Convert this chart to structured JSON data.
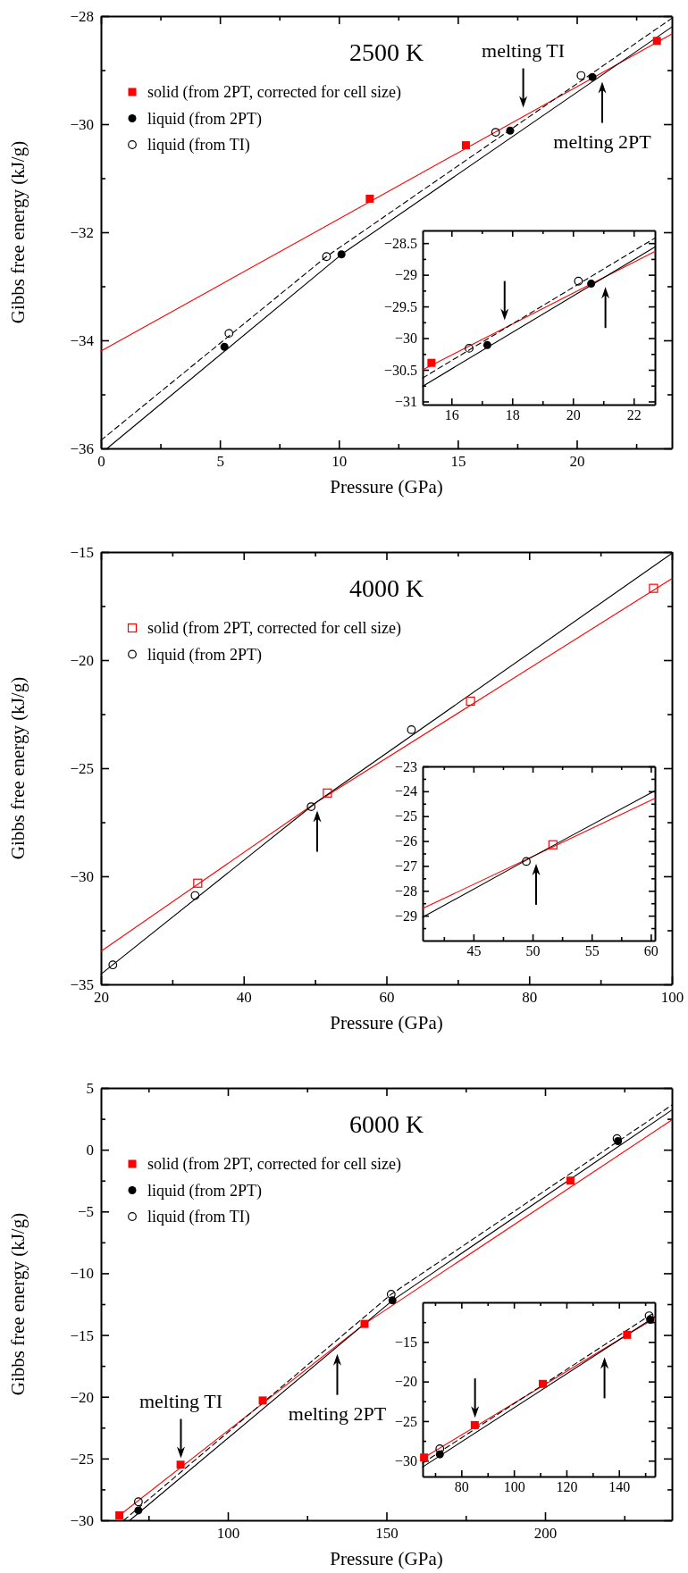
{
  "chart_data": [
    {
      "type": "scatter",
      "title": "2500 K",
      "xlabel": "Pressure (GPa)",
      "ylabel": "Gibbs free energy (kJ/g)",
      "xlim": [
        0,
        24
      ],
      "ylim": [
        -36,
        -28
      ],
      "xticks": [
        0,
        {
          "value": 2.5,
          "label": null
        },
        5,
        {
          "value": 7.5,
          "label": null
        },
        10,
        {
          "value": 12.5,
          "label": null
        },
        15,
        {
          "value": 17.5,
          "label": null
        },
        20,
        {
          "value": 22.5,
          "label": null
        }
      ],
      "yticks": [
        -36,
        {
          "value": -35,
          "label": null
        },
        -34,
        {
          "value": -33,
          "label": null
        },
        -32,
        {
          "value": -31,
          "label": null
        },
        -30,
        {
          "value": -29,
          "label": null
        },
        -28
      ],
      "legend": "top left",
      "annotations": [
        {
          "text": "melting TI",
          "x": 17.75,
          "y": -29.86
        },
        {
          "text": "melting 2PT",
          "x": 21.07,
          "y": -29.05
        }
      ],
      "series": [
        {
          "type": "line",
          "color": "#ff0000",
          "x": [
            0,
            24
          ],
          "values": [
            -34.2,
            -28.33
          ]
        },
        {
          "type": "line",
          "color": "#000000",
          "x": [
            0.26,
            10.11,
            24
          ],
          "values": [
            -36,
            -32.41,
            -28.2
          ]
        },
        {
          "type": "line",
          "color": "#000000",
          "line_style": "dashed",
          "x": [
            0,
            9.48,
            24
          ],
          "values": [
            -35.85,
            -32.45,
            -28.04
          ]
        },
        {
          "name": "solid (from 2PT, corrected for cell size)",
          "marker": "square",
          "color": "#ff0000",
          "x": [
            11.3,
            15.34,
            23.37
          ],
          "values": [
            -31.38,
            -30.39,
            -28.46
          ]
        },
        {
          "name": "liquid (from 2PT)",
          "marker": "circle",
          "color": "#000000",
          "x": [
            5.19,
            10.11,
            17.2,
            20.66
          ],
          "values": [
            -34.12,
            -32.41,
            -30.12,
            -29.13
          ]
        },
        {
          "name": "liquid (from TI)",
          "marker": "circle-open",
          "color": "#000000",
          "x": [
            5.38,
            9.48,
            16.59,
            20.18
          ],
          "values": [
            -33.87,
            -32.45,
            -30.15,
            -29.1
          ]
        }
      ]
    },
    {
      "type": "scatter",
      "xlim": [
        15.05,
        22.7
      ],
      "ylim": [
        -31.05,
        -28.3
      ],
      "xticks": [
        16,
        {
          "value": 17,
          "label": null
        },
        18,
        {
          "value": 19,
          "label": null
        },
        20,
        {
          "value": 21,
          "label": null
        },
        22
      ],
      "yticks": [
        -31,
        {
          "value": -30.75,
          "label": null
        },
        -30.5,
        {
          "value": -30.25,
          "label": null
        },
        -30,
        {
          "value": -29.75,
          "label": null
        },
        -29.5,
        {
          "value": -29.25,
          "label": null
        },
        -29,
        {
          "value": -28.75,
          "label": null
        },
        -28.5
      ],
      "series": [
        {
          "type": "line",
          "color": "#ff0000",
          "x": [
            15.05,
            22.7
          ],
          "values": [
            -30.5,
            -28.63
          ]
        },
        {
          "type": "line",
          "color": "#000000",
          "x": [
            15.05,
            22.7
          ],
          "values": [
            -30.76,
            -28.56
          ]
        },
        {
          "type": "line",
          "color": "#000000",
          "line_style": "dashed",
          "x": [
            15.05,
            22.7
          ],
          "values": [
            -30.63,
            -28.42
          ]
        },
        {
          "marker": "square",
          "color": "#ff0000",
          "x": [
            15.34
          ],
          "values": [
            -30.39
          ]
        },
        {
          "marker": "circle",
          "color": "#000000",
          "x": [
            17.18,
            20.6
          ],
          "values": [
            -30.11,
            -29.14
          ]
        },
        {
          "marker": "circle-open",
          "color": "#000000",
          "x": [
            16.58,
            20.18
          ],
          "values": [
            -30.16,
            -29.1
          ]
        }
      ]
    },
    {
      "type": "scatter",
      "title": "4000 K",
      "xlabel": "Pressure (GPa)",
      "ylabel": "Gibbs free energy (kJ/g)",
      "xlim": [
        20,
        100
      ],
      "ylim": [
        -35,
        -15
      ],
      "xticks": [
        20,
        {
          "value": 30,
          "label": null
        },
        40,
        {
          "value": 50,
          "label": null
        },
        60,
        {
          "value": 70,
          "label": null
        },
        80,
        {
          "value": 90,
          "label": null
        },
        100
      ],
      "yticks": [
        -35,
        {
          "value": -32.5,
          "label": null
        },
        -30,
        {
          "value": -27.5,
          "label": null
        },
        -25,
        {
          "value": -22.5,
          "label": null
        },
        -20,
        {
          "value": -17.5,
          "label": null
        },
        -15
      ],
      "legend": "top left",
      "series": [
        {
          "type": "line",
          "color": "#ff0000",
          "x": [
            20,
            50.3,
            100
          ],
          "values": [
            -33.47,
            -26.55,
            -16.23
          ]
        },
        {
          "type": "line",
          "color": "#000000",
          "x": [
            20,
            50.3,
            100
          ],
          "values": [
            -34.53,
            -26.55,
            -15.06
          ]
        },
        {
          "name": "solid (from 2PT, corrected for cell size)",
          "marker": "square-open",
          "color": "#ff0000",
          "x": [
            33.56,
            51.72,
            71.78,
            97.42
          ],
          "values": [
            -30.32,
            -26.15,
            -21.9,
            -16.68
          ]
        },
        {
          "name": "liquid (from 2PT)",
          "marker": "circle-open",
          "color": "#000000",
          "x": [
            21.66,
            33.19,
            49.45,
            63.5
          ],
          "values": [
            -34.1,
            -30.89,
            -26.78,
            -23.22
          ]
        }
      ]
    },
    {
      "type": "scatter",
      "xlim": [
        40.7,
        60.35
      ],
      "ylim": [
        -30,
        -23
      ],
      "xticks": [
        {
          "value": 42.5,
          "label": null
        },
        45,
        {
          "value": 47.5,
          "label": null
        },
        50,
        {
          "value": 52.5,
          "label": null
        },
        55,
        {
          "value": 57.5,
          "label": null
        },
        60
      ],
      "yticks": [
        {
          "value": -29.5,
          "label": null
        },
        -29,
        {
          "value": -28.5,
          "label": null
        },
        -28,
        {
          "value": -27.5,
          "label": null
        },
        -27,
        {
          "value": -26.5,
          "label": null
        },
        -26,
        {
          "value": -25.5,
          "label": null
        },
        -25,
        {
          "value": -24.5,
          "label": null
        },
        -24,
        {
          "value": -23.5,
          "label": null
        },
        -23
      ],
      "series": [
        {
          "type": "line",
          "color": "#ff0000",
          "x": [
            40.7,
            50.3,
            60.35
          ],
          "values": [
            -28.71,
            -26.55,
            -24.28
          ]
        },
        {
          "type": "line",
          "color": "#000000",
          "x": [
            40.7,
            50.3,
            60.35
          ],
          "values": [
            -29.06,
            -26.55,
            -23.98
          ]
        },
        {
          "marker": "square-open",
          "color": "#ff0000",
          "x": [
            51.72
          ],
          "values": [
            -26.15
          ]
        },
        {
          "marker": "circle-open",
          "color": "#000000",
          "x": [
            49.47
          ],
          "values": [
            -26.82
          ]
        }
      ]
    },
    {
      "type": "scatter",
      "title": "6000 K",
      "xlabel": "Pressure (GPa)",
      "ylabel": "Gibbs free energy (kJ/g)",
      "xlim": [
        60,
        240
      ],
      "ylim": [
        -30,
        5
      ],
      "xticks": [
        {
          "value": 75,
          "label": null
        },
        100,
        {
          "value": 125,
          "label": null
        },
        150,
        {
          "value": 175,
          "label": null
        },
        200,
        {
          "value": 225,
          "label": null
        }
      ],
      "yticks": [
        -30,
        {
          "value": -27.5,
          "label": null
        },
        -25,
        {
          "value": -22.5,
          "label": null
        },
        -20,
        {
          "value": -17.5,
          "label": null
        },
        -15,
        {
          "value": -12.5,
          "label": null
        },
        -10,
        {
          "value": -7.5,
          "label": null
        },
        -5,
        {
          "value": -2.5,
          "label": null
        },
        0,
        {
          "value": 2.5,
          "label": null
        },
        5
      ],
      "legend": "top left",
      "annotations": [
        {
          "text": "melting TI",
          "x": 85.2,
          "y": -25.7
        },
        {
          "text": "melting 2PT",
          "x": 134.5,
          "y": -15.8
        }
      ],
      "series": [
        {
          "type": "line",
          "color": "#ff0000",
          "x": [
            65.8,
            143.1,
            239.9
          ],
          "values": [
            -29.6,
            -14.1,
            2.4
          ]
        },
        {
          "type": "line",
          "color": "#000000",
          "x": [
            69.1,
            151.9,
            239.9
          ],
          "values": [
            -30,
            -12.2,
            3.2
          ]
        },
        {
          "type": "line",
          "color": "#000000",
          "line_style": "dashed",
          "x": [
            67.2,
            151.5,
            239.9
          ],
          "values": [
            -30,
            -11.7,
            3.6
          ]
        },
        {
          "name": "solid (from 2PT, corrected for cell size)",
          "marker": "square",
          "color": "#ff0000",
          "x": [
            65.8,
            85.1,
            111,
            143.1,
            208
          ],
          "values": [
            -29.6,
            -25.5,
            -20.3,
            -14.1,
            -2.5
          ]
        },
        {
          "name": "liquid (from 2PT)",
          "marker": "circle",
          "color": "#000000",
          "x": [
            71.8,
            151.9,
            223
          ],
          "values": [
            -29.2,
            -12.2,
            0.7
          ]
        },
        {
          "name": "liquid (from TI)",
          "marker": "circle-open",
          "color": "#000000",
          "x": [
            71.8,
            151.5,
            222.7
          ],
          "values": [
            -28.5,
            -11.7,
            0.9
          ]
        }
      ]
    },
    {
      "type": "scatter",
      "xlim": [
        65.25,
        153.7
      ],
      "ylim": [
        -32,
        -10
      ],
      "xticks": [
        {
          "value": 70,
          "label": null
        },
        80,
        {
          "value": 90,
          "label": null
        },
        100,
        {
          "value": 110,
          "label": null
        },
        120,
        {
          "value": 130,
          "label": null
        },
        140,
        {
          "value": 150,
          "label": null
        }
      ],
      "yticks": [
        -30,
        {
          "value": -27.5,
          "label": null
        },
        -25,
        {
          "value": -22.5,
          "label": null
        },
        -20,
        {
          "value": -17.5,
          "label": null
        },
        -15,
        {
          "value": -12.5,
          "label": null
        }
      ],
      "series": [
        {
          "type": "line",
          "color": "#ff0000",
          "x": [
            65.8,
            143.1,
            153.7
          ],
          "values": [
            -29.6,
            -14.1,
            -12.0
          ]
        },
        {
          "type": "line",
          "color": "#000000",
          "x": [
            65.25,
            151.9,
            153.7
          ],
          "values": [
            -30.8,
            -12.2,
            -11.8
          ]
        },
        {
          "type": "line",
          "color": "#000000",
          "line_style": "dashed",
          "x": [
            65.25,
            151.5,
            153.7
          ],
          "values": [
            -30.3,
            -11.7,
            -11.3
          ]
        },
        {
          "marker": "square",
          "color": "#ff0000",
          "x": [
            65.8,
            85.1,
            111,
            143.1
          ],
          "values": [
            -29.6,
            -25.5,
            -20.3,
            -14.1
          ]
        },
        {
          "marker": "circle",
          "color": "#000000",
          "x": [
            71.8,
            151.9
          ],
          "values": [
            -29.2,
            -12.2
          ]
        },
        {
          "marker": "circle-open",
          "color": "#000000",
          "x": [
            71.8,
            151.5
          ],
          "values": [
            -28.5,
            -11.7
          ]
        }
      ]
    }
  ]
}
